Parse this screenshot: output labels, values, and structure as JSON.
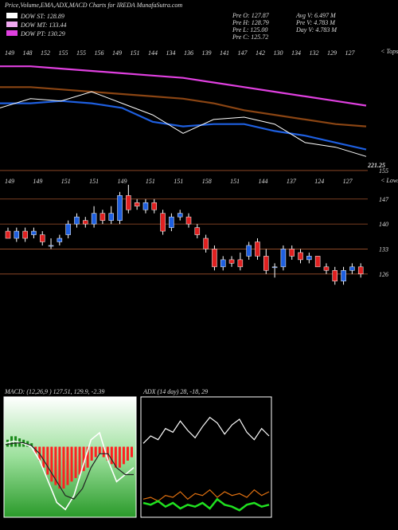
{
  "header": {
    "title": "Price,Volume,EMA,ADX,MACD Charts for IREDA MunafaSutra.com",
    "legend": [
      {
        "label": "DOW ST: 128.89",
        "color": "#ffffff"
      },
      {
        "label": "DOW MT: 133.44",
        "color": "#f0a8f0"
      },
      {
        "label": "DOW PT: 130.29",
        "color": "#e040e0"
      }
    ],
    "info": [
      "Pre  O: 127.87",
      "Avg V: 6.497 M",
      "Pre  H: 128.79",
      "Pre  V: 4.783 M",
      "Pre  L: 125.00",
      "Day V: 4.783 M",
      "Pre  C: 125.72"
    ]
  },
  "chart_data": [
    {
      "type": "line",
      "tops": [
        "149",
        "148",
        "152",
        "155",
        "155",
        "156",
        "149",
        "151",
        "144",
        "134",
        "136",
        "139",
        "141",
        "147",
        "142",
        "130",
        "134",
        "132",
        "129",
        "127"
      ],
      "tops_label": "< Tops",
      "last_label": "221.25",
      "ylim": [
        115,
        165
      ],
      "series": [
        {
          "name": "PT",
          "color": "#e040e0",
          "values": [
            157,
            157,
            156,
            155,
            154,
            153,
            152,
            150,
            148,
            146,
            144,
            142,
            140
          ]
        },
        {
          "name": "MT",
          "color": "#8b4513",
          "values": [
            148,
            148,
            147,
            146,
            145,
            144,
            143,
            141,
            138,
            136,
            134,
            132,
            131
          ]
        },
        {
          "name": "EMA",
          "color": "#1e5fe0",
          "values": [
            141,
            141,
            142,
            141,
            139,
            133,
            131,
            132,
            132,
            129,
            127,
            124,
            121
          ]
        },
        {
          "name": "Price",
          "color": "#ffffff",
          "values": [
            139,
            143,
            142,
            146,
            141,
            136,
            128,
            134,
            135,
            132,
            124,
            122,
            118
          ]
        }
      ]
    },
    {
      "type": "candlestick",
      "lows": [
        "149",
        "149",
        "151",
        "151",
        "149",
        "151",
        "151",
        "158",
        "151",
        "144",
        "137",
        "124",
        "127"
      ],
      "lows_label": "< Lows",
      "ylim": [
        113,
        157
      ],
      "yticks": [
        155,
        147,
        140,
        133,
        126
      ],
      "up_color": "#1e5fe0",
      "down_color": "#e02020",
      "open": [
        138,
        136,
        138,
        137,
        137,
        134,
        135,
        137,
        140,
        141,
        140,
        143,
        141,
        141,
        148,
        146,
        144,
        146,
        143,
        139,
        142,
        142,
        139,
        136,
        133,
        128,
        130,
        130,
        131,
        135,
        131,
        128,
        128,
        133,
        132,
        130,
        131,
        128,
        127,
        124,
        127,
        128
      ],
      "high": [
        139,
        139,
        139,
        139,
        138,
        136,
        137,
        141,
        143,
        142,
        145,
        144,
        145,
        149,
        151,
        147,
        147,
        147,
        144,
        143,
        144,
        143,
        140,
        137,
        134,
        131,
        131,
        132,
        135,
        136,
        133,
        129,
        134,
        134,
        133,
        132,
        131,
        129,
        128,
        128,
        129,
        129
      ],
      "low": [
        136,
        135,
        135,
        136,
        134,
        133,
        134,
        136,
        139,
        139,
        139,
        140,
        140,
        140,
        143,
        144,
        143,
        143,
        137,
        138,
        141,
        139,
        136,
        132,
        127,
        127,
        128,
        127,
        130,
        130,
        126,
        125,
        127,
        130,
        129,
        129,
        128,
        126,
        123,
        123,
        126,
        125
      ],
      "close": [
        136,
        138,
        136,
        138,
        135,
        134,
        136,
        140,
        142,
        140,
        143,
        141,
        143,
        148,
        144,
        145,
        146,
        144,
        138,
        142,
        143,
        140,
        137,
        133,
        128,
        130,
        129,
        128,
        134,
        131,
        127,
        128,
        133,
        131,
        130,
        131,
        128,
        127,
        124,
        127,
        128,
        126
      ]
    },
    {
      "type": "macd",
      "label": "MACD: (12,26,9 ) 127.51, 129.9, -2.39",
      "ylim": [
        -10,
        6
      ],
      "histogram": [
        1,
        1.5,
        1.5,
        1.2,
        1,
        0.8,
        0.5,
        -1,
        -2,
        -3,
        -4,
        -5,
        -5.5,
        -6,
        -6,
        -5.5,
        -5,
        -4.5,
        -4,
        -3.5,
        -3,
        -2,
        -1.5,
        -1,
        -1.5,
        -2,
        -2.5,
        -3,
        -3,
        -2.5,
        -2,
        -1.5
      ],
      "macd": [
        0.5,
        0.8,
        0.5,
        0,
        -2,
        -5,
        -8,
        -9,
        -7,
        -3,
        1,
        2,
        -2,
        -5,
        -4,
        -3
      ],
      "signal": [
        0.3,
        0.5,
        0.6,
        0.2,
        -1,
        -3,
        -5,
        -7,
        -7.5,
        -6,
        -3,
        -1,
        -1,
        -3,
        -4,
        -4
      ]
    },
    {
      "type": "adx",
      "label": "ADX (14 day) 28, -18, 29",
      "ylim": [
        0,
        60
      ],
      "series": [
        {
          "name": "ADX",
          "color": "#ffffff",
          "values": [
            38,
            42,
            40,
            46,
            44,
            50,
            45,
            41,
            47,
            52,
            49,
            43,
            48,
            51,
            44,
            40,
            46,
            42
          ]
        },
        {
          "name": "-DI",
          "color": "#e07010",
          "values": [
            8,
            9,
            7,
            10,
            9,
            12,
            8,
            11,
            10,
            13,
            9,
            12,
            10,
            11,
            9,
            13,
            10,
            12
          ]
        },
        {
          "name": "+DI",
          "color": "#20e020",
          "values": [
            6,
            5,
            7,
            4,
            6,
            3,
            5,
            4,
            6,
            3,
            8,
            5,
            4,
            2,
            5,
            6,
            4,
            5
          ]
        }
      ]
    }
  ]
}
